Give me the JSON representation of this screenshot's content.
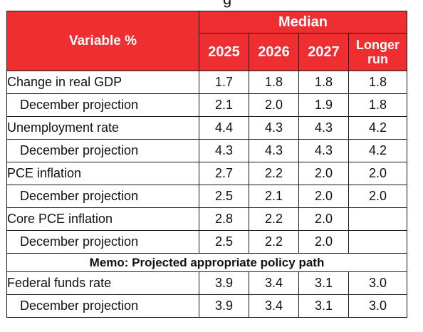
{
  "top_clipped_text": "g",
  "header": {
    "variable_label": "Variable %",
    "group_label": "Median",
    "columns": [
      "2025",
      "2026",
      "2027",
      "Longer run"
    ]
  },
  "rows": [
    {
      "label": "Change in real GDP",
      "values": [
        "1.7",
        "1.8",
        "1.8",
        "1.8"
      ]
    },
    {
      "label": "December projection",
      "values": [
        "2.1",
        "2.0",
        "1.9",
        "1.8"
      ]
    },
    {
      "label": "Unemployment rate",
      "values": [
        "4.4",
        "4.3",
        "4.3",
        "4.2"
      ]
    },
    {
      "label": "December projection",
      "values": [
        "4.3",
        "4.3",
        "4.3",
        "4.2"
      ]
    },
    {
      "label": "PCE inflation",
      "values": [
        "2.7",
        "2.2",
        "2.0",
        "2.0"
      ]
    },
    {
      "label": "December projection",
      "values": [
        "2.5",
        "2.1",
        "2.0",
        "2.0"
      ]
    },
    {
      "label": "Core PCE inflation",
      "values": [
        "2.8",
        "2.2",
        "2.0",
        ""
      ]
    },
    {
      "label": "December projection",
      "values": [
        "2.5",
        "2.2",
        "2.0",
        ""
      ]
    }
  ],
  "memo": "Memo: Projected appropriate policy path",
  "policy_rows": [
    {
      "label": "Federal funds rate",
      "values": [
        "3.9",
        "3.4",
        "3.1",
        "3.0"
      ]
    },
    {
      "label": "December projection",
      "values": [
        "3.9",
        "3.4",
        "3.1",
        "3.0"
      ]
    }
  ],
  "colors": {
    "header_bg": "#ee2e31",
    "header_text": "#ffffff",
    "border": "#1a1a1a"
  }
}
